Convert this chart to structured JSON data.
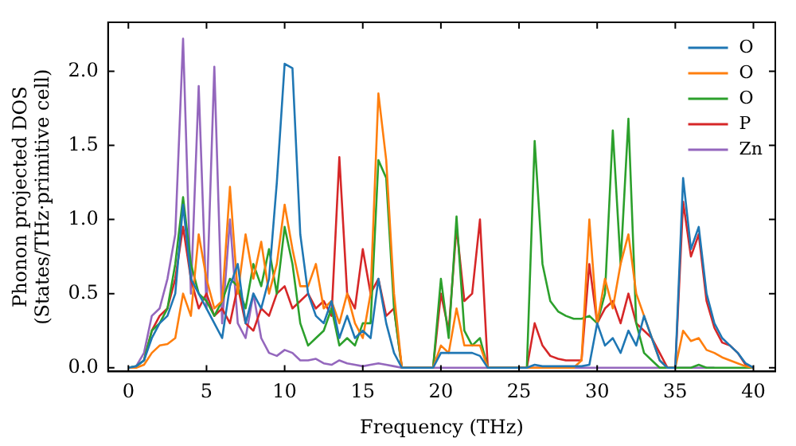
{
  "chart_data": {
    "type": "line",
    "xlabel": "Frequency (THz)",
    "ylabel": "Phonon projected DOS\n(States/THz·primitive cell)",
    "x": [
      0,
      0.5,
      1,
      1.5,
      2,
      2.5,
      3,
      3.5,
      4,
      4.5,
      5,
      5.5,
      6,
      6.5,
      7,
      7.5,
      8,
      8.5,
      9,
      9.5,
      10,
      10.5,
      11,
      11.5,
      12,
      12.5,
      13,
      13.5,
      14,
      14.5,
      15,
      15.5,
      16,
      16.5,
      17,
      17.5,
      18,
      18.5,
      19,
      19.5,
      20,
      20.5,
      21,
      21.5,
      22,
      22.5,
      23,
      23.5,
      24,
      24.5,
      25,
      25.5,
      26,
      26.5,
      27,
      27.5,
      28,
      28.5,
      29,
      29.5,
      30,
      30.5,
      31,
      31.5,
      32,
      32.5,
      33,
      33.5,
      34,
      34.5,
      35,
      35.5,
      36,
      36.5,
      37,
      37.5,
      38,
      38.5,
      39,
      39.5,
      40
    ],
    "series": [
      {
        "name": "O",
        "color": "#1f77b4",
        "values": [
          0,
          0.01,
          0.05,
          0.2,
          0.3,
          0.35,
          0.5,
          1.1,
          0.6,
          0.5,
          0.4,
          0.3,
          0.2,
          0.55,
          0.7,
          0.3,
          0.5,
          0.4,
          0.6,
          1.25,
          2.05,
          2.02,
          0.9,
          0.5,
          0.35,
          0.3,
          0.45,
          0.2,
          0.35,
          0.2,
          0.25,
          0.2,
          0.6,
          0.3,
          0.1,
          0,
          0,
          0,
          0,
          0,
          0.1,
          0.1,
          0.1,
          0.1,
          0.1,
          0.08,
          0,
          0,
          0,
          0,
          0,
          0,
          0.02,
          0.01,
          0.01,
          0.01,
          0.01,
          0.01,
          0.01,
          0.02,
          0.3,
          0.15,
          0.2,
          0.1,
          0.25,
          0.15,
          0.35,
          0.2,
          0.05,
          0,
          0,
          1.28,
          0.8,
          0.95,
          0.5,
          0.3,
          0.2,
          0.15,
          0.1,
          0.03,
          0
        ]
      },
      {
        "name": "O",
        "color": "#ff7f0e",
        "values": [
          0,
          0,
          0.02,
          0.1,
          0.15,
          0.16,
          0.2,
          0.5,
          0.35,
          0.9,
          0.6,
          0.4,
          0.45,
          1.22,
          0.5,
          0.9,
          0.6,
          0.85,
          0.5,
          0.7,
          1.1,
          0.8,
          0.55,
          0.55,
          0.7,
          0.4,
          0.45,
          0.3,
          0.5,
          0.3,
          0.2,
          0.5,
          1.85,
          1.4,
          0.5,
          0,
          0,
          0,
          0,
          0,
          0.15,
          0.1,
          0.4,
          0.15,
          0.15,
          0.15,
          0,
          0,
          0,
          0,
          0,
          0,
          0,
          0,
          0,
          0,
          0,
          0,
          0.05,
          1.0,
          0.3,
          0.6,
          0.4,
          0.7,
          0.9,
          0.5,
          0.35,
          0.2,
          0.05,
          0,
          0,
          0.25,
          0.18,
          0.2,
          0.12,
          0.1,
          0.07,
          0.05,
          0.03,
          0.01,
          0
        ]
      },
      {
        "name": "O",
        "color": "#2ca02c",
        "values": [
          0,
          0.01,
          0.05,
          0.25,
          0.3,
          0.4,
          0.7,
          1.15,
          0.7,
          0.5,
          0.45,
          0.35,
          0.45,
          0.6,
          0.55,
          0.4,
          0.7,
          0.55,
          0.8,
          0.5,
          0.95,
          0.7,
          0.3,
          0.15,
          0.2,
          0.25,
          0.4,
          0.15,
          0.2,
          0.15,
          0.3,
          0.3,
          1.4,
          1.28,
          0.4,
          0,
          0,
          0,
          0,
          0,
          0.6,
          0.2,
          1.02,
          0.25,
          0.15,
          0.2,
          0,
          0,
          0,
          0,
          0,
          0,
          1.53,
          0.7,
          0.45,
          0.38,
          0.35,
          0.33,
          0.33,
          0.35,
          0.3,
          0.5,
          1.6,
          0.7,
          1.68,
          0.3,
          0.1,
          0.05,
          0,
          0,
          0,
          0,
          0,
          0.02,
          0,
          0,
          0,
          0,
          0,
          0,
          0
        ]
      },
      {
        "name": "P",
        "color": "#d62728",
        "values": [
          null,
          null,
          0.05,
          0.25,
          0.35,
          0.4,
          0.6,
          0.95,
          0.6,
          0.4,
          0.5,
          0.35,
          0.4,
          0.3,
          0.55,
          0.3,
          0.25,
          0.4,
          0.35,
          0.5,
          0.55,
          0.4,
          0.45,
          0.5,
          0.4,
          0.45,
          0.35,
          1.42,
          0.5,
          0.4,
          0.8,
          0.5,
          0.6,
          0.35,
          0.4,
          0,
          0,
          0,
          0,
          0,
          0.5,
          0.25,
          0.95,
          0.45,
          0.5,
          1.0,
          0,
          0,
          0,
          0,
          0,
          0,
          0.3,
          0.15,
          0.08,
          0.06,
          0.05,
          0.05,
          0.05,
          0.7,
          0.3,
          0.4,
          0.45,
          0.3,
          0.5,
          0.3,
          0.25,
          0.2,
          0.1,
          0,
          0,
          1.12,
          0.75,
          0.9,
          0.45,
          0.27,
          0.17,
          0.15,
          0.1,
          0.02,
          0
        ]
      },
      {
        "name": "Zn",
        "color": "#9467bd",
        "values": [
          0,
          0.01,
          0.1,
          0.35,
          0.4,
          0.6,
          0.9,
          2.22,
          0.5,
          1.9,
          0.4,
          2.03,
          0.3,
          1.0,
          0.3,
          0.2,
          0.5,
          0.2,
          0.1,
          0.08,
          0.12,
          0.1,
          0.05,
          0.05,
          0.06,
          0.03,
          0.02,
          0.05,
          0.03,
          0.02,
          0.01,
          0.02,
          0.03,
          0.02,
          0.01,
          0,
          0,
          0,
          0,
          0,
          0,
          0,
          0,
          0,
          0,
          0,
          0,
          0,
          0,
          0,
          0,
          0,
          0,
          0,
          0,
          0,
          0,
          0,
          0,
          0,
          0,
          0,
          0,
          0,
          0,
          0,
          0,
          0,
          0,
          0,
          0,
          0,
          0,
          0,
          0,
          0,
          null,
          null,
          null,
          null,
          null
        ]
      }
    ],
    "xlim": [
      -1.3,
      41.4
    ],
    "xticks": [
      0,
      5,
      10,
      15,
      20,
      25,
      30,
      35,
      40
    ],
    "ylim": [
      -0.025,
      2.33
    ],
    "yticks": [
      {
        "value": 0,
        "label": "0.0"
      },
      0.5,
      {
        "value": 1,
        "label": "1.0"
      },
      1.5,
      {
        "value": 2,
        "label": "2.0"
      }
    ],
    "legend": "top right"
  }
}
